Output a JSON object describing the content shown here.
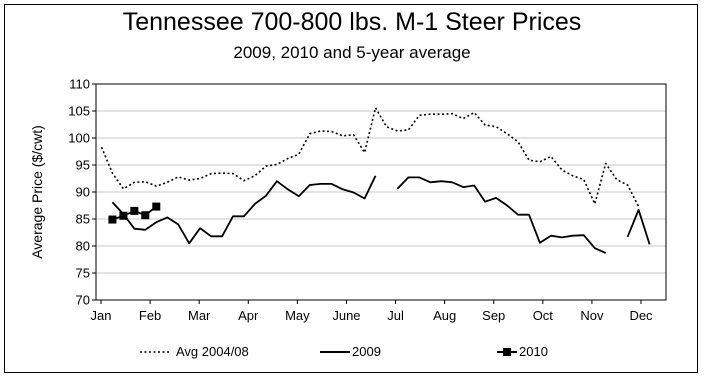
{
  "chart_data": {
    "type": "line",
    "title": "Tennessee 700-800 lbs. M-1 Steer Prices",
    "subtitle": "2009, 2010 and 5-year average",
    "xlabel": "",
    "ylabel": "Average Price ($/cwt)",
    "ylim": [
      70,
      110
    ],
    "yticks": [
      70,
      75,
      80,
      85,
      90,
      95,
      100,
      105,
      110
    ],
    "xticks": [
      "Jan",
      "Feb",
      "Mar",
      "Apr",
      "May",
      "June",
      "Jul",
      "Aug",
      "Sep",
      "Oct",
      "Nov",
      "Dec"
    ],
    "grid": "horizontal",
    "legend_position": "bottom",
    "x_unit": "week",
    "series": [
      {
        "name": "Avg 2004/08",
        "style": "dotted",
        "color": "#000000",
        "points": [
          [
            1,
            98.3
          ],
          [
            2,
            93.5
          ],
          [
            3,
            90.6
          ],
          [
            4,
            91.8
          ],
          [
            5,
            91.9
          ],
          [
            6,
            91.1
          ],
          [
            7,
            91.8
          ],
          [
            8,
            92.8
          ],
          [
            9,
            92.2
          ],
          [
            10,
            92.5
          ],
          [
            11,
            93.4
          ],
          [
            12,
            93.5
          ],
          [
            13,
            93.4
          ],
          [
            14,
            92.1
          ],
          [
            15,
            93.0
          ],
          [
            16,
            94.8
          ],
          [
            17,
            95.1
          ],
          [
            18,
            96.2
          ],
          [
            19,
            97.0
          ],
          [
            20,
            100.8
          ],
          [
            21,
            101.3
          ],
          [
            22,
            101.2
          ],
          [
            23,
            100.4
          ],
          [
            24,
            100.6
          ],
          [
            25,
            97.3
          ],
          [
            26,
            105.6
          ],
          [
            27,
            102.1
          ],
          [
            28,
            101.3
          ],
          [
            29,
            101.5
          ],
          [
            30,
            104.2
          ],
          [
            31,
            104.4
          ],
          [
            32,
            104.4
          ],
          [
            33,
            104.5
          ],
          [
            34,
            103.6
          ],
          [
            35,
            104.7
          ],
          [
            36,
            102.4
          ],
          [
            37,
            102.1
          ],
          [
            38,
            100.8
          ],
          [
            39,
            99.3
          ],
          [
            40,
            95.9
          ],
          [
            41,
            95.6
          ],
          [
            42,
            96.6
          ],
          [
            43,
            94.1
          ],
          [
            44,
            93.0
          ],
          [
            45,
            92.3
          ],
          [
            46,
            87.8
          ],
          [
            47,
            95.3
          ],
          [
            48,
            92.3
          ],
          [
            49,
            91.3
          ],
          [
            50,
            87.3
          ]
        ]
      },
      {
        "name": "2009",
        "style": "solid",
        "color": "#000000",
        "points": [
          [
            2,
            88.1
          ],
          [
            3,
            85.9
          ],
          [
            4,
            83.2
          ],
          [
            5,
            83.0
          ],
          [
            6,
            84.4
          ],
          [
            7,
            85.3
          ],
          [
            8,
            84.0
          ],
          [
            9,
            80.5
          ],
          [
            10,
            83.3
          ],
          [
            11,
            81.8
          ],
          [
            12,
            81.8
          ],
          [
            13,
            85.5
          ],
          [
            14,
            85.5
          ],
          [
            15,
            87.8
          ],
          [
            16,
            89.3
          ],
          [
            17,
            92.0
          ],
          [
            18,
            90.5
          ],
          [
            19,
            89.2
          ],
          [
            20,
            91.3
          ],
          [
            21,
            91.5
          ],
          [
            22,
            91.5
          ],
          [
            23,
            90.5
          ],
          [
            24,
            89.9
          ],
          [
            25,
            88.8
          ],
          [
            26,
            93.0
          ],
          null,
          [
            28,
            90.6
          ],
          [
            29,
            92.7
          ],
          [
            30,
            92.7
          ],
          [
            31,
            91.8
          ],
          [
            32,
            92.0
          ],
          [
            33,
            91.8
          ],
          [
            34,
            90.9
          ],
          [
            35,
            91.2
          ],
          [
            36,
            88.2
          ],
          [
            37,
            88.9
          ],
          [
            38,
            87.5
          ],
          [
            39,
            85.8
          ],
          [
            40,
            85.8
          ],
          [
            41,
            80.6
          ],
          [
            42,
            81.9
          ],
          [
            43,
            81.6
          ],
          [
            44,
            81.9
          ],
          [
            45,
            82.0
          ],
          [
            46,
            79.6
          ],
          [
            47,
            78.7
          ],
          null,
          [
            49,
            81.7
          ],
          [
            50,
            86.7
          ],
          [
            51,
            80.3
          ]
        ]
      },
      {
        "name": "2010",
        "style": "solid-square",
        "color": "#000000",
        "points": [
          [
            2,
            84.9
          ],
          [
            3,
            85.6
          ],
          [
            4,
            86.5
          ],
          [
            5,
            85.7
          ],
          [
            6,
            87.3
          ]
        ]
      }
    ]
  },
  "legend": [
    {
      "label": "Avg 2004/08"
    },
    {
      "label": "2009"
    },
    {
      "label": "2010"
    }
  ]
}
